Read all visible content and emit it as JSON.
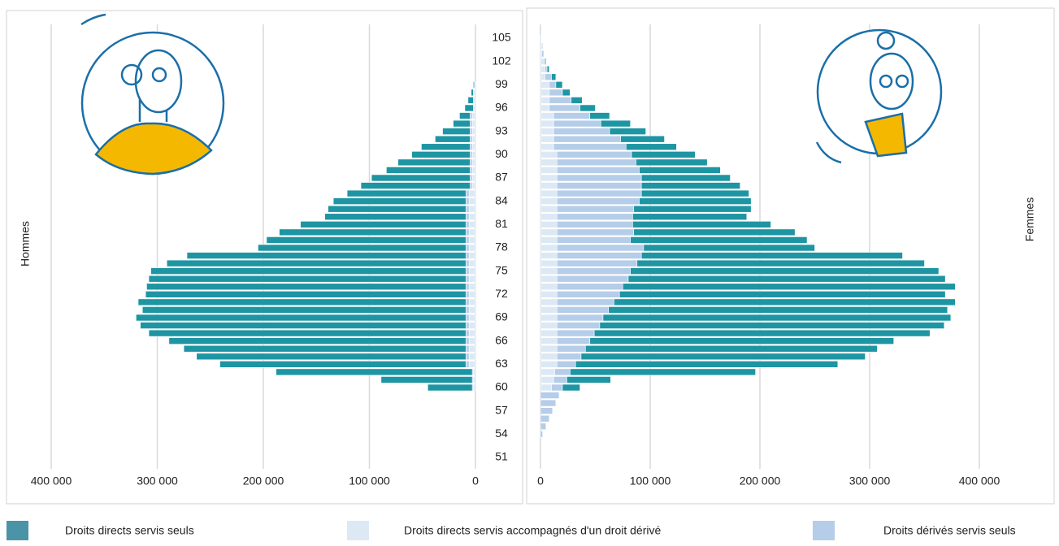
{
  "chart_data": {
    "type": "pyramid",
    "categories": [
      51,
      null,
      null,
      54,
      null,
      null,
      57,
      null,
      null,
      60,
      null,
      null,
      63,
      null,
      null,
      66,
      null,
      null,
      69,
      null,
      null,
      72,
      null,
      null,
      75,
      null,
      null,
      78,
      null,
      null,
      81,
      null,
      null,
      84,
      null,
      null,
      87,
      null,
      null,
      90,
      null,
      null,
      93,
      null,
      null,
      96,
      null,
      null,
      99,
      null,
      null,
      102,
      null,
      null,
      105
    ],
    "series": [
      {
        "name": "Droits directs servis seuls",
        "color": "#1e95a3"
      },
      {
        "name": "Droits directs servis accompagnés d'un droit dérivé",
        "color": "#dce9f5"
      },
      {
        "name": "Droits dérivés servis seuls",
        "color": "#b5cde8"
      }
    ],
    "panels": [
      {
        "label": "Hommes",
        "xaxis_reversed": true,
        "xlim": [
          0,
          400000
        ],
        "xticks": [
          0,
          {
            "value": 100000,
            "label": "100 000"
          },
          {
            "value": 200000,
            "label": "200 000"
          },
          {
            "value": 300000,
            "label": "300 000"
          },
          {
            "value": 400000,
            "label": "400 000"
          }
        ],
        "grid": true,
        "values": [
          [
            0,
            0,
            0,
            0,
            0,
            0,
            0,
            0,
            0,
            42000,
            86000,
            185000,
            232000,
            254000,
            266000,
            280000,
            299000,
            307000,
            311000,
            305000,
            309000,
            302000,
            301000,
            299000,
            297000,
            282000,
            263000,
            196000,
            188000,
            176000,
            156000,
            133000,
            130000,
            125000,
            112000,
            103000,
            93000,
            79000,
            68000,
            55000,
            46000,
            33000,
            26000,
            16000,
            10000,
            8000,
            5000,
            2000,
            1000,
            0,
            0,
            0,
            0,
            0,
            0
          ],
          [
            0,
            0,
            0,
            0,
            0,
            0,
            0,
            0,
            0,
            2000,
            2000,
            2000,
            6000,
            6000,
            6000,
            6000,
            6000,
            6000,
            6000,
            6000,
            6000,
            6000,
            6000,
            6000,
            6000,
            6000,
            6000,
            6000,
            6000,
            6000,
            6000,
            6000,
            6000,
            6000,
            6000,
            3000,
            3000,
            3000,
            3000,
            3000,
            3000,
            3000,
            3000,
            3000,
            3000,
            1000,
            1000,
            1000,
            1000,
            0,
            0,
            0,
            0,
            0,
            0
          ],
          [
            0,
            0,
            0,
            0,
            0,
            0,
            0,
            0,
            0,
            1000,
            1000,
            1000,
            3000,
            3000,
            3000,
            3000,
            3000,
            3000,
            3000,
            3000,
            3000,
            3000,
            3000,
            3000,
            3000,
            3000,
            3000,
            3000,
            3000,
            3000,
            3000,
            3000,
            3000,
            3000,
            3000,
            2000,
            2000,
            2000,
            2000,
            2000,
            2000,
            2000,
            2000,
            2000,
            2000,
            1000,
            1000,
            1000,
            0,
            0,
            0,
            0,
            0,
            0,
            0
          ]
        ]
      },
      {
        "label": "Femmes",
        "xaxis_reversed": false,
        "xlim": [
          0,
          400000
        ],
        "xticks": [
          0,
          {
            "value": 100000,
            "label": "100 000"
          },
          {
            "value": 200000,
            "label": "200 000"
          },
          {
            "value": 300000,
            "label": "300 000"
          },
          {
            "value": 400000,
            "label": "400 000"
          }
        ],
        "grid": true,
        "values": [
          [
            0,
            0,
            0,
            0,
            0,
            0,
            0,
            0,
            0,
            16000,
            40000,
            169000,
            239000,
            259000,
            266000,
            277000,
            306000,
            314000,
            317000,
            309000,
            311000,
            297000,
            303000,
            289000,
            281000,
            262000,
            238000,
            156000,
            161000,
            147000,
            126000,
            104000,
            107000,
            102000,
            98000,
            90000,
            81000,
            74000,
            65000,
            58000,
            46000,
            40000,
            33000,
            27000,
            18000,
            14000,
            10000,
            7000,
            6000,
            4000,
            2000,
            1000,
            0,
            0,
            0
          ],
          [
            0,
            0,
            0,
            0,
            0,
            0,
            0,
            0,
            0,
            10000,
            12000,
            13000,
            15000,
            15000,
            15000,
            15000,
            15000,
            15000,
            15000,
            15000,
            15000,
            15000,
            15000,
            15000,
            15000,
            15000,
            15000,
            15000,
            15000,
            15000,
            15000,
            15000,
            15000,
            15000,
            15000,
            15000,
            15000,
            15000,
            15000,
            15000,
            12000,
            12000,
            12000,
            12000,
            12000,
            8000,
            8000,
            8000,
            8000,
            4000,
            4000,
            4000,
            1000,
            1000,
            1000
          ],
          [
            0,
            0,
            0,
            2000,
            5000,
            8000,
            11000,
            14000,
            17000,
            10000,
            12000,
            14000,
            17000,
            22000,
            26000,
            30000,
            34000,
            39000,
            42000,
            47000,
            52000,
            57000,
            60000,
            65000,
            67000,
            73000,
            77000,
            79000,
            67000,
            70000,
            69000,
            69000,
            70000,
            75000,
            77000,
            77000,
            77000,
            75000,
            72000,
            68000,
            66000,
            61000,
            51000,
            43000,
            33000,
            28000,
            20000,
            12000,
            6000,
            6000,
            2000,
            0,
            2000,
            1000,
            0
          ]
        ]
      }
    ]
  }
}
